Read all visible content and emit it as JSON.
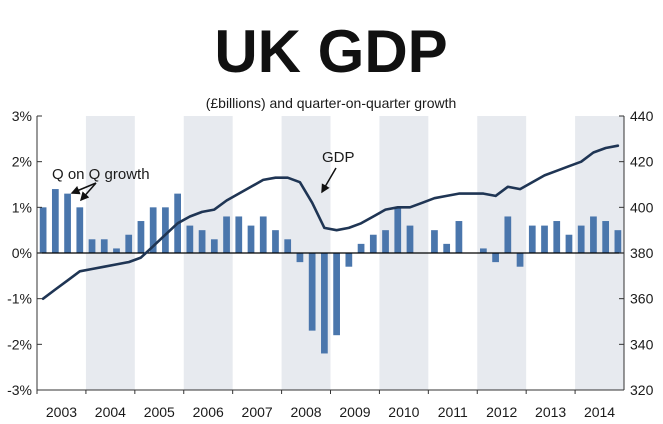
{
  "chart_data": {
    "type": "bar+line",
    "title": "UK GDP",
    "subtitle": "(£billions) and quarter-on-quarter growth",
    "years": [
      "2003",
      "2004",
      "2005",
      "2006",
      "2007",
      "2008",
      "2009",
      "2010",
      "2011",
      "2012",
      "2013",
      "2014"
    ],
    "left_axis": {
      "range": [
        -3,
        3
      ],
      "ticks": [
        "-3%",
        "-2%",
        "-1%",
        "0%",
        "1%",
        "2%",
        "3%"
      ]
    },
    "right_axis": {
      "range": [
        320,
        440
      ],
      "ticks": [
        "320",
        "340",
        "360",
        "380",
        "400",
        "420",
        "440"
      ]
    },
    "series": [
      {
        "name": "Q on Q growth",
        "kind": "bar",
        "axis": "left",
        "values": [
          1.0,
          1.4,
          1.3,
          1.0,
          0.3,
          0.3,
          0.1,
          0.4,
          0.7,
          1.0,
          1.0,
          1.3,
          0.6,
          0.5,
          0.3,
          0.8,
          0.8,
          0.6,
          0.8,
          0.5,
          0.3,
          -0.2,
          -1.7,
          -2.2,
          -1.8,
          -0.3,
          0.2,
          0.4,
          0.5,
          1.0,
          0.6,
          0.0,
          0.5,
          0.2,
          0.7,
          0.0,
          0.1,
          -0.2,
          0.8,
          -0.3,
          0.6,
          0.6,
          0.7,
          0.4,
          0.6,
          0.8,
          0.7,
          0.5
        ]
      },
      {
        "name": "GDP",
        "kind": "line",
        "axis": "right",
        "values": [
          360,
          364,
          368,
          372,
          373,
          374,
          375,
          376,
          378,
          383,
          388,
          393,
          396,
          398,
          399,
          403,
          406,
          409,
          412,
          413,
          413,
          411,
          402,
          391,
          390,
          391,
          393,
          396,
          399,
          400,
          400,
          402,
          404,
          405,
          406,
          406,
          406,
          405,
          409,
          408,
          411,
          414,
          416,
          418,
          420,
          424,
          426,
          427
        ]
      }
    ],
    "annotations": {
      "bars_label": "Q on Q growth",
      "line_label": "GDP"
    },
    "colors": {
      "bar": "#4a76ac",
      "line": "#1f3554",
      "shade": "#e7eaef",
      "zero_line": "#000000"
    },
    "grid": false,
    "legend": "none"
  }
}
